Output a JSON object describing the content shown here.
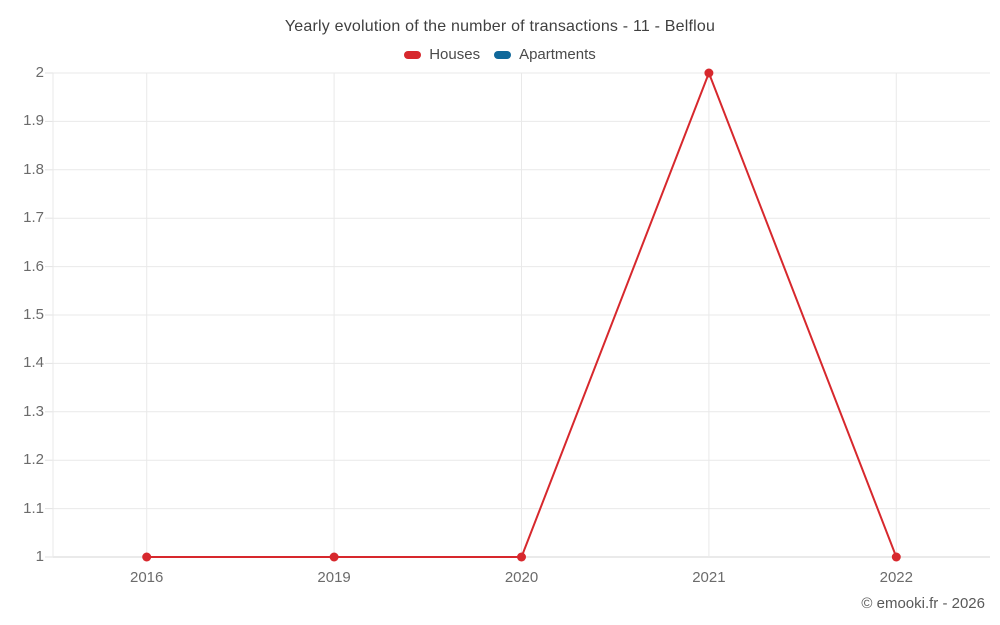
{
  "title": "Yearly evolution of the number of transactions - 11 - Belflou",
  "legend": {
    "items": [
      {
        "label": "Houses",
        "color": "#d7282d"
      },
      {
        "label": "Apartments",
        "color": "#10689a"
      }
    ]
  },
  "footer": {
    "copyright": "© emooki.fr - 2026"
  },
  "chart_data": {
    "type": "line",
    "title": "Yearly evolution of the number of transactions - 11 - Belflou",
    "categories": [
      "2016",
      "2019",
      "2020",
      "2021",
      "2022"
    ],
    "series": [
      {
        "name": "Houses",
        "color": "#d7282d",
        "values": [
          1,
          1,
          1,
          2,
          1
        ]
      },
      {
        "name": "Apartments",
        "color": "#10689a",
        "values": []
      }
    ],
    "xlabel": "",
    "ylabel": "",
    "ylim": [
      1,
      2
    ],
    "yticks": [
      "1",
      "1.1",
      "1.2",
      "1.3",
      "1.4",
      "1.5",
      "1.6",
      "1.7",
      "1.8",
      "1.9",
      "2"
    ],
    "grid": true,
    "legend_position": "top",
    "colors": {
      "gridline": "#e9e9e9",
      "axis_line": "#d5d5d5",
      "tick_mark": "#e2e2e2",
      "tick_text": "#6b6b6b"
    }
  }
}
